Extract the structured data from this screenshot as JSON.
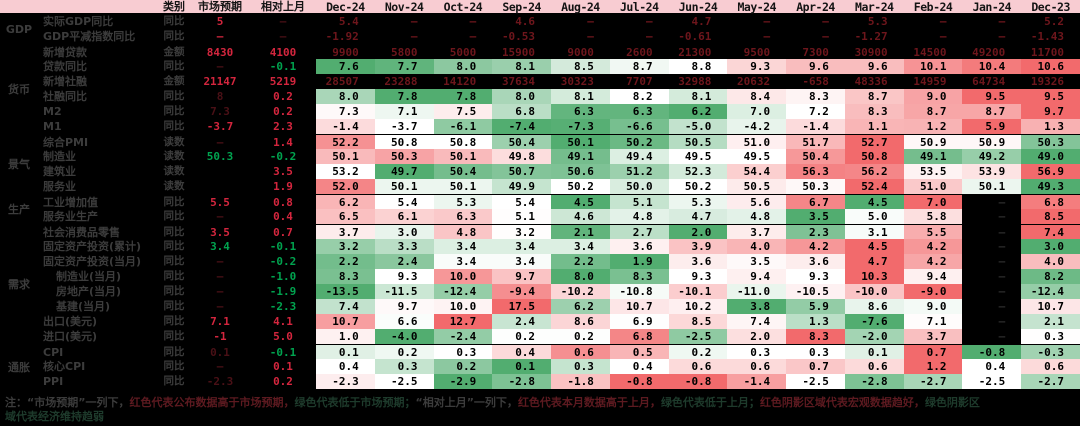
{
  "chart_data": {
    "type": "heatmap",
    "title": "",
    "legend_position": "none",
    "header": {
      "type_col": "类别",
      "expect_col": "市场预期",
      "mom_col": "相对上月"
    },
    "months": [
      "Dec-24",
      "Nov-24",
      "Oct-24",
      "Sep-24",
      "Aug-24",
      "Jul-24",
      "Jun-24",
      "May-24",
      "Apr-24",
      "Mar-24",
      "Feb-24",
      "Jan-24",
      "Dec-23"
    ],
    "categories": [
      {
        "name": "GDP",
        "rows": 2
      },
      {
        "name": "货币",
        "rows": 6
      },
      {
        "name": "景气",
        "rows": 4
      },
      {
        "name": "生产",
        "rows": 2
      },
      {
        "name": "需求",
        "rows": 8
      },
      {
        "name": "通胀",
        "rows": 3
      }
    ],
    "palette": {
      "heat_green": "#52AD70",
      "heat_red": "#F26A6C",
      "heat_mid": "#FFFFFF",
      "bright_red": "#D4263E",
      "bright_green": "#00A34F",
      "faint": "#4A1016",
      "dark_value": "#6E161C",
      "missing": "#2B2B2B",
      "header_bg": "#F8CCD2",
      "label": "#3C3C3C"
    },
    "rows": [
      {
        "label": "实际GDP同比",
        "indent": false,
        "type": "同比",
        "dark": true,
        "sep": false,
        "expect": {
          "text": "5",
          "color": "red"
        },
        "mom": {
          "text": "—",
          "color": "faint"
        },
        "values": [
          "5.4",
          "—",
          "—",
          "4.6",
          "—",
          "—",
          "4.7",
          "—",
          "—",
          "5.3",
          "—",
          "—",
          "5.2"
        ]
      },
      {
        "label": "GDP平减指数同比",
        "indent": false,
        "type": "同比",
        "dark": true,
        "sep": false,
        "expect": {
          "text": "—",
          "color": "red"
        },
        "mom": {
          "text": "—",
          "color": "faint"
        },
        "values": [
          "-1.92",
          "—",
          "—",
          "-0.53",
          "—",
          "—",
          "-0.61",
          "—",
          "—",
          "-1.27",
          "—",
          "—",
          "-1.43"
        ]
      },
      {
        "label": "新增贷款",
        "indent": false,
        "type": "金额",
        "dark": true,
        "sep": true,
        "expect": {
          "text": "8430",
          "color": "red"
        },
        "mom": {
          "text": "4100",
          "color": "red"
        },
        "values": [
          "9900",
          "5800",
          "5000",
          "15900",
          "9000",
          "2600",
          "21300",
          "9500",
          "7300",
          "30900",
          "14500",
          "49200",
          "11700"
        ]
      },
      {
        "label": "贷款同比",
        "indent": false,
        "type": "同比",
        "dark": false,
        "sep": false,
        "expect": {
          "text": "—",
          "color": "faint"
        },
        "mom": {
          "text": "-0.1",
          "color": "green"
        },
        "values": [
          "7.6",
          "7.7",
          "8.0",
          "8.1",
          "8.5",
          "8.7",
          "8.8",
          "9.3",
          "9.6",
          "9.6",
          "10.1",
          "10.4",
          "10.6"
        ]
      },
      {
        "label": "新增社融",
        "indent": false,
        "type": "金额",
        "dark": true,
        "sep": false,
        "expect": {
          "text": "21147",
          "color": "red"
        },
        "mom": {
          "text": "5219",
          "color": "red"
        },
        "values": [
          "28507",
          "23288",
          "14120",
          "37634",
          "30323",
          "7707",
          "32988",
          "20632",
          "-658",
          "48336",
          "14959",
          "64734",
          "19326"
        ]
      },
      {
        "label": "社融同比",
        "indent": false,
        "type": "同比",
        "dark": false,
        "sep": false,
        "expect": {
          "text": "8",
          "color": "faint"
        },
        "mom": {
          "text": "0.2",
          "color": "red"
        },
        "values": [
          "8.0",
          "7.8",
          "7.8",
          "8.0",
          "8.1",
          "8.2",
          "8.1",
          "8.4",
          "8.3",
          "8.7",
          "9.0",
          "9.5",
          "9.5"
        ]
      },
      {
        "label": "M2",
        "indent": false,
        "type": "同比",
        "dark": false,
        "sep": false,
        "expect": {
          "text": "7.3",
          "color": "faint"
        },
        "mom": {
          "text": "0.2",
          "color": "red"
        },
        "values": [
          "7.3",
          "7.1",
          "7.5",
          "6.8",
          "6.3",
          "6.3",
          "6.2",
          "7.0",
          "7.2",
          "8.3",
          "8.7",
          "8.7",
          "9.7"
        ]
      },
      {
        "label": "M1",
        "indent": false,
        "type": "同比",
        "dark": false,
        "sep": false,
        "expect": {
          "text": "-3.7",
          "color": "red"
        },
        "mom": {
          "text": "2.3",
          "color": "red"
        },
        "values": [
          "-1.4",
          "-3.7",
          "-6.1",
          "-7.4",
          "-7.3",
          "-6.6",
          "-5.0",
          "-4.2",
          "-1.4",
          "1.1",
          "1.2",
          "5.9",
          "1.3"
        ]
      },
      {
        "label": "综合PMI",
        "indent": false,
        "type": "读数",
        "dark": false,
        "sep": true,
        "expect": {
          "text": "—",
          "color": "faint"
        },
        "mom": {
          "text": "1.4",
          "color": "red"
        },
        "values": [
          "52.2",
          "50.8",
          "50.8",
          "50.4",
          "50.1",
          "50.2",
          "50.5",
          "51.0",
          "51.7",
          "52.7",
          "50.9",
          "50.9",
          "50.3"
        ]
      },
      {
        "label": "制造业",
        "indent": false,
        "type": "读数",
        "dark": false,
        "sep": false,
        "expect": {
          "text": "50.3",
          "color": "green"
        },
        "mom": {
          "text": "-0.2",
          "color": "green"
        },
        "values": [
          "50.1",
          "50.3",
          "50.1",
          "49.8",
          "49.1",
          "49.4",
          "49.5",
          "49.5",
          "50.4",
          "50.8",
          "49.1",
          "49.2",
          "49.0"
        ]
      },
      {
        "label": "建筑业",
        "indent": false,
        "type": "读数",
        "dark": false,
        "sep": false,
        "expect": {
          "text": "",
          "color": "faint"
        },
        "mom": {
          "text": "3.5",
          "color": "red"
        },
        "values": [
          "53.2",
          "49.7",
          "50.4",
          "50.7",
          "50.6",
          "51.2",
          "52.3",
          "54.4",
          "56.3",
          "56.2",
          "53.5",
          "53.9",
          "56.9"
        ]
      },
      {
        "label": "服务业",
        "indent": false,
        "type": "读数",
        "dark": false,
        "sep": false,
        "expect": {
          "text": "",
          "color": "faint"
        },
        "mom": {
          "text": "1.9",
          "color": "red"
        },
        "values": [
          "52.0",
          "50.1",
          "50.1",
          "49.9",
          "50.2",
          "50.0",
          "50.2",
          "50.5",
          "50.3",
          "52.4",
          "51.0",
          "50.1",
          "49.3"
        ]
      },
      {
        "label": "工业增加值",
        "indent": false,
        "type": "同比",
        "dark": false,
        "sep": true,
        "expect": {
          "text": "5.5",
          "color": "red"
        },
        "mom": {
          "text": "0.8",
          "color": "red"
        },
        "values": [
          "6.2",
          "5.4",
          "5.3",
          "5.4",
          "4.5",
          "5.1",
          "5.3",
          "5.6",
          "6.7",
          "4.5",
          "7.0",
          null,
          "6.8"
        ]
      },
      {
        "label": "服务业生产",
        "indent": false,
        "type": "同比",
        "dark": false,
        "sep": false,
        "expect": {
          "text": "—",
          "color": "faint"
        },
        "mom": {
          "text": "0.4",
          "color": "red"
        },
        "values": [
          "6.5",
          "6.1",
          "6.3",
          "5.1",
          "4.6",
          "4.8",
          "4.7",
          "4.8",
          "3.5",
          "5.0",
          "5.8",
          null,
          "8.5"
        ]
      },
      {
        "label": "社会消费品零售",
        "indent": false,
        "type": "同比",
        "dark": false,
        "sep": true,
        "expect": {
          "text": "3.5",
          "color": "red"
        },
        "mom": {
          "text": "0.7",
          "color": "red"
        },
        "values": [
          "3.7",
          "3.0",
          "4.8",
          "3.2",
          "2.1",
          "2.7",
          "2.0",
          "3.7",
          "2.3",
          "3.1",
          "5.5",
          null,
          "7.4"
        ]
      },
      {
        "label": "固定资产投资(累计)",
        "indent": false,
        "type": "同比",
        "dark": false,
        "sep": false,
        "expect": {
          "text": "3.4",
          "color": "green"
        },
        "mom": {
          "text": "-0.1",
          "color": "green"
        },
        "values": [
          "3.2",
          "3.3",
          "3.4",
          "3.4",
          "3.4",
          "3.6",
          "3.9",
          "4.0",
          "4.2",
          "4.5",
          "4.2",
          null,
          "3.0"
        ]
      },
      {
        "label": "固定资产投资(当月)",
        "indent": false,
        "type": "同比",
        "dark": false,
        "sep": false,
        "expect": {
          "text": "—",
          "color": "faint"
        },
        "mom": {
          "text": "-0.2",
          "color": "green"
        },
        "values": [
          "2.2",
          "2.4",
          "3.4",
          "3.4",
          "2.2",
          "1.9",
          "3.6",
          "3.5",
          "3.6",
          "4.7",
          "4.2",
          null,
          "4.0"
        ]
      },
      {
        "label": "制造业(当月)",
        "indent": true,
        "type": "同比",
        "dark": false,
        "sep": false,
        "expect": {
          "text": "—",
          "color": "faint"
        },
        "mom": {
          "text": "-1.0",
          "color": "green"
        },
        "values": [
          "8.3",
          "9.3",
          "10.0",
          "9.7",
          "8.0",
          "8.3",
          "9.3",
          "9.4",
          "9.3",
          "10.3",
          "9.4",
          null,
          "8.2"
        ]
      },
      {
        "label": "房地产(当月)",
        "indent": true,
        "type": "同比",
        "dark": false,
        "sep": false,
        "expect": {
          "text": "—",
          "color": "faint"
        },
        "mom": {
          "text": "-1.9",
          "color": "green"
        },
        "values": [
          "-13.5",
          "-11.5",
          "-12.4",
          "-9.4",
          "-10.2",
          "-10.8",
          "-10.1",
          "-11.0",
          "-10.5",
          "-10.0",
          "-9.0",
          null,
          "-12.4"
        ]
      },
      {
        "label": "基建(当月)",
        "indent": true,
        "type": "同比",
        "dark": false,
        "sep": false,
        "expect": {
          "text": "—",
          "color": "faint"
        },
        "mom": {
          "text": "-2.3",
          "color": "green"
        },
        "values": [
          "7.4",
          "9.7",
          "10.0",
          "17.5",
          "6.2",
          "10.7",
          "10.2",
          "3.8",
          "5.9",
          "8.6",
          "9.0",
          null,
          "10.7"
        ]
      },
      {
        "label": "出口(美元)",
        "indent": false,
        "type": "同比",
        "dark": false,
        "sep": false,
        "expect": {
          "text": "7.1",
          "color": "red"
        },
        "mom": {
          "text": "4.1",
          "color": "red"
        },
        "values": [
          "10.7",
          "6.6",
          "12.7",
          "2.4",
          "8.6",
          "6.9",
          "8.5",
          "7.4",
          "1.3",
          "-7.6",
          "7.1",
          null,
          "2.1"
        ]
      },
      {
        "label": "进口(美元)",
        "indent": false,
        "type": "同比",
        "dark": false,
        "sep": false,
        "expect": {
          "text": "-1",
          "color": "red"
        },
        "mom": {
          "text": "5.0",
          "color": "red"
        },
        "values": [
          "1.0",
          "-4.0",
          "-2.4",
          "0.2",
          "0.2",
          "6.8",
          "-2.5",
          "2.0",
          "8.3",
          "-2.0",
          "3.7",
          null,
          "0.3"
        ]
      },
      {
        "label": "CPI",
        "indent": false,
        "type": "同比",
        "dark": false,
        "sep": true,
        "expect": {
          "text": "0.1",
          "color": "faint"
        },
        "mom": {
          "text": "-0.1",
          "color": "green"
        },
        "values": [
          "0.1",
          "0.2",
          "0.3",
          "0.4",
          "0.6",
          "0.5",
          "0.2",
          "0.3",
          "0.3",
          "0.1",
          "0.7",
          "-0.8",
          "-0.3"
        ]
      },
      {
        "label": "核心CPI",
        "indent": false,
        "type": "同比",
        "dark": false,
        "sep": false,
        "expect": {
          "text": "—",
          "color": "faint"
        },
        "mom": {
          "text": "0.1",
          "color": "red"
        },
        "values": [
          "0.4",
          "0.3",
          "0.2",
          "0.1",
          "0.3",
          "0.4",
          "0.6",
          "0.6",
          "0.7",
          "0.6",
          "1.2",
          "0.4",
          "0.6"
        ]
      },
      {
        "label": "PPI",
        "indent": false,
        "type": "同比",
        "dark": false,
        "sep": false,
        "expect": {
          "text": "-2.3",
          "color": "faint"
        },
        "mom": {
          "text": "0.2",
          "color": "red"
        },
        "values": [
          "-2.3",
          "-2.5",
          "-2.9",
          "-2.8",
          "-1.8",
          "-0.8",
          "-0.8",
          "-1.4",
          "-2.5",
          "-2.8",
          "-2.7",
          "-2.5",
          "-2.7"
        ]
      }
    ],
    "footnote": {
      "lines": [
        [
          {
            "text": "注：“市场预期”一列下，",
            "tone": "gray"
          },
          {
            "text": "红色代表公布数据高于市场预期，",
            "tone": "red"
          },
          {
            "text": "绿色代表低于市场预期；",
            "tone": "green"
          },
          {
            "text": "“相对上月”一列下，",
            "tone": "gray"
          },
          {
            "text": "红色代表本月数据高于上月，",
            "tone": "red"
          },
          {
            "text": "绿色代表低于上月；",
            "tone": "green"
          },
          {
            "text": "红色阴影区域代表宏观数据趋好，",
            "tone": "red"
          },
          {
            "text": "绿色阴影区",
            "tone": "green"
          }
        ],
        [
          {
            "text": "域代表经济维持趋弱",
            "tone": "green"
          }
        ]
      ],
      "tones": {
        "gray": "#3C3C3C",
        "red": "#5D1A20",
        "green": "#1E3B2C"
      }
    }
  }
}
